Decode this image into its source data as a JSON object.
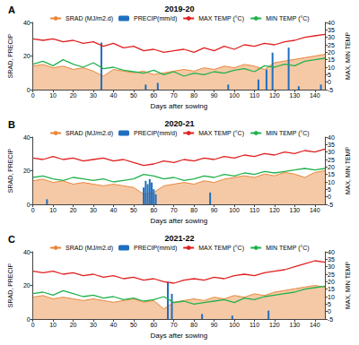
{
  "chart_data": [
    {
      "type": "line",
      "panel_label": "A",
      "title": "2019-20",
      "xlabel": "Days after sowing",
      "ylabel": "SRAD, PRECIP",
      "y2label": "MAX, MIN TEMP",
      "legend": "top",
      "grid": false,
      "xlim": [
        0,
        145
      ],
      "xticks": [
        0,
        10,
        20,
        30,
        40,
        50,
        60,
        70,
        80,
        90,
        100,
        110,
        120,
        130,
        140
      ],
      "ylim": [
        0,
        40
      ],
      "yticks": [
        0,
        20,
        40
      ],
      "y2lim": [
        -5,
        40
      ],
      "y2ticks": [
        -5,
        0,
        5,
        10,
        15,
        20,
        25,
        30,
        35,
        40
      ],
      "x": [
        0,
        5,
        10,
        15,
        20,
        25,
        30,
        35,
        40,
        45,
        50,
        55,
        60,
        65,
        70,
        75,
        80,
        85,
        90,
        95,
        100,
        105,
        110,
        115,
        120,
        125,
        130,
        135,
        140,
        145
      ],
      "series": [
        {
          "name": "SRAD (MJ/m2.d)",
          "type": "area",
          "color": "#e8873a",
          "values": [
            14,
            15,
            13,
            14,
            12,
            13,
            11,
            8,
            12,
            11,
            10,
            11,
            9,
            10,
            11,
            12,
            11,
            13,
            12,
            14,
            13,
            15,
            14,
            12,
            16,
            17,
            18,
            19,
            20,
            21
          ]
        },
        {
          "name": "PRECIP(mm/d)",
          "type": "bar",
          "color": "#1f6fc0",
          "x": [
            34,
            56,
            62,
            97,
            112,
            116,
            119,
            127,
            132,
            143
          ],
          "values": [
            28,
            3,
            4,
            3,
            6,
            12,
            22,
            25,
            2,
            3
          ]
        },
        {
          "name": "MAX TEMP (°C)",
          "type": "line",
          "axis": "y2",
          "color": "#e02020",
          "values": [
            29,
            28,
            29,
            27,
            28,
            26,
            27,
            24,
            26,
            23,
            24,
            21,
            22,
            20,
            21,
            22,
            20,
            23,
            21,
            24,
            22,
            25,
            24,
            26,
            25,
            27,
            28,
            30,
            31,
            32
          ]
        },
        {
          "name": "MIN TEMP (°C)",
          "type": "line",
          "axis": "y2",
          "color": "#22b14c",
          "values": [
            12,
            14,
            11,
            15,
            12,
            10,
            13,
            9,
            10,
            8,
            7,
            6,
            8,
            5,
            7,
            4,
            6,
            5,
            7,
            6,
            8,
            9,
            7,
            11,
            10,
            12,
            11,
            14,
            15,
            16
          ]
        }
      ]
    },
    {
      "type": "line",
      "panel_label": "B",
      "title": "2020-21",
      "xlabel": "Days after sowing",
      "ylabel": "SRAD, PRECIP",
      "y2label": "MAX, MIN TEMP",
      "legend": "top",
      "grid": false,
      "xlim": [
        0,
        145
      ],
      "xticks": [
        0,
        10,
        20,
        30,
        40,
        50,
        60,
        70,
        80,
        90,
        100,
        110,
        120,
        130,
        140
      ],
      "ylim": [
        0,
        40
      ],
      "yticks": [
        0,
        20,
        40
      ],
      "y2lim": [
        -5,
        40
      ],
      "y2ticks": [
        -5,
        0,
        5,
        10,
        15,
        20,
        25,
        30,
        35,
        40
      ],
      "x": [
        0,
        5,
        10,
        15,
        20,
        25,
        30,
        35,
        40,
        45,
        50,
        55,
        60,
        65,
        70,
        75,
        80,
        85,
        90,
        95,
        100,
        105,
        110,
        115,
        120,
        125,
        130,
        135,
        140,
        145
      ],
      "series": [
        {
          "name": "SRAD (MJ/m2.d)",
          "type": "area",
          "color": "#e8873a",
          "values": [
            14,
            15,
            13,
            14,
            12,
            13,
            12,
            11,
            12,
            11,
            10,
            6,
            7,
            11,
            12,
            13,
            12,
            14,
            13,
            15,
            16,
            17,
            16,
            18,
            17,
            19,
            18,
            16,
            19,
            20
          ]
        },
        {
          "name": "PRECIP(mm/d)",
          "type": "bar",
          "color": "#1f6fc0",
          "x": [
            7,
            55,
            56,
            57,
            58,
            59,
            60,
            61,
            88
          ],
          "values": [
            3,
            10,
            14,
            12,
            15,
            13,
            9,
            6,
            7
          ]
        },
        {
          "name": "MAX TEMP (°C)",
          "type": "line",
          "axis": "y2",
          "color": "#e02020",
          "values": [
            26,
            25,
            27,
            25,
            26,
            24,
            25,
            26,
            24,
            25,
            23,
            21,
            22,
            24,
            23,
            25,
            24,
            26,
            25,
            27,
            26,
            28,
            27,
            29,
            28,
            30,
            29,
            31,
            30,
            32
          ]
        },
        {
          "name": "MIN TEMP (°C)",
          "type": "line",
          "axis": "y2",
          "color": "#22b14c",
          "values": [
            13,
            14,
            12,
            11,
            13,
            12,
            11,
            12,
            10,
            11,
            12,
            15,
            14,
            12,
            13,
            11,
            12,
            14,
            13,
            15,
            14,
            16,
            15,
            17,
            16,
            17,
            18,
            19,
            18,
            19
          ]
        }
      ]
    },
    {
      "type": "line",
      "panel_label": "C",
      "title": "2021-22",
      "xlabel": "Days after sowing",
      "ylabel": "SRAD, PRECIP",
      "y2label": "MAX, MIN TEMP",
      "legend": "top",
      "grid": false,
      "xlim": [
        0,
        145
      ],
      "xticks": [
        0,
        10,
        20,
        30,
        40,
        50,
        60,
        70,
        80,
        90,
        100,
        110,
        120,
        130,
        140
      ],
      "ylim": [
        0,
        40
      ],
      "yticks": [
        0,
        20,
        40
      ],
      "y2lim": [
        -5,
        40
      ],
      "y2ticks": [
        -5,
        0,
        5,
        10,
        15,
        20,
        25,
        30,
        35,
        40
      ],
      "x": [
        0,
        5,
        10,
        15,
        20,
        25,
        30,
        35,
        40,
        45,
        50,
        55,
        60,
        65,
        70,
        75,
        80,
        85,
        90,
        95,
        100,
        105,
        110,
        115,
        120,
        125,
        130,
        135,
        140,
        145
      ],
      "series": [
        {
          "name": "SRAD (MJ/m2.d)",
          "type": "area",
          "color": "#e8873a",
          "values": [
            13,
            14,
            12,
            13,
            12,
            11,
            12,
            11,
            10,
            11,
            12,
            10,
            11,
            6,
            10,
            11,
            12,
            11,
            13,
            12,
            14,
            13,
            15,
            14,
            16,
            17,
            18,
            19,
            20,
            19
          ]
        },
        {
          "name": "PRECIP(mm/d)",
          "type": "bar",
          "color": "#1f6fc0",
          "x": [
            67,
            69,
            84,
            99,
            117
          ],
          "values": [
            22,
            15,
            3,
            2,
            5
          ]
        },
        {
          "name": "MAX TEMP (°C)",
          "type": "line",
          "axis": "y2",
          "color": "#e02020",
          "values": [
            27,
            26,
            27,
            25,
            26,
            24,
            25,
            23,
            24,
            22,
            23,
            21,
            22,
            20,
            19,
            21,
            22,
            21,
            23,
            22,
            24,
            25,
            24,
            26,
            27,
            28,
            30,
            32,
            34,
            33
          ]
        },
        {
          "name": "MIN TEMP (°C)",
          "type": "line",
          "axis": "y2",
          "color": "#22b14c",
          "values": [
            12,
            13,
            11,
            14,
            12,
            10,
            11,
            9,
            10,
            8,
            9,
            7,
            8,
            10,
            6,
            7,
            5,
            6,
            7,
            8,
            6,
            9,
            8,
            10,
            11,
            12,
            13,
            15,
            16,
            17
          ]
        }
      ]
    }
  ]
}
